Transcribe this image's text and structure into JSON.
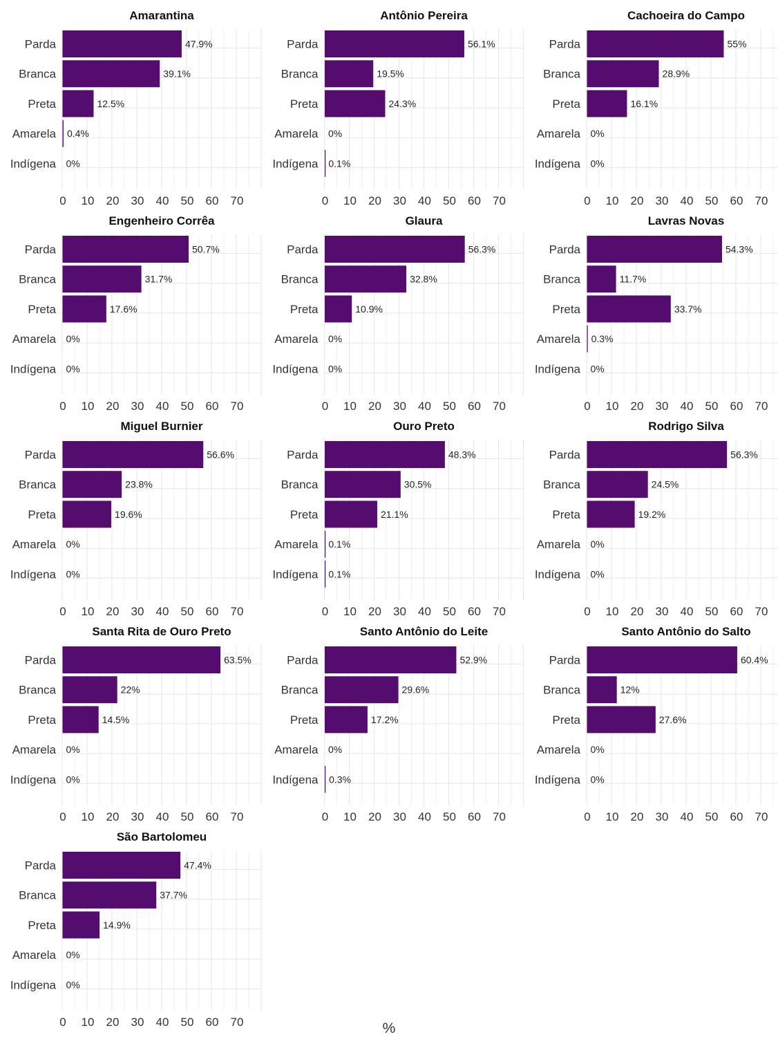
{
  "chart_data": {
    "type": "bar",
    "orientation": "horizontal",
    "xlabel": "%",
    "xlim": [
      0,
      80
    ],
    "xticks": [
      0,
      10,
      20,
      30,
      40,
      50,
      60,
      70
    ],
    "bar_color": "#540d6e",
    "grid": true,
    "categories": [
      "Parda",
      "Branca",
      "Preta",
      "Amarela",
      "Indígena"
    ],
    "panels": [
      {
        "title": "Amarantina",
        "values": [
          47.9,
          39.1,
          12.5,
          0.4,
          0
        ],
        "labels": [
          "47.9%",
          "39.1%",
          "12.5%",
          "0.4%",
          "0%"
        ]
      },
      {
        "title": "Antônio Pereira",
        "values": [
          56.1,
          19.5,
          24.3,
          0,
          0.1
        ],
        "labels": [
          "56.1%",
          "19.5%",
          "24.3%",
          "0%",
          "0.1%"
        ]
      },
      {
        "title": "Cachoeira do Campo",
        "values": [
          55,
          28.9,
          16.1,
          0,
          0
        ],
        "labels": [
          "55%",
          "28.9%",
          "16.1%",
          "0%",
          "0%"
        ]
      },
      {
        "title": "Engenheiro Corrêa",
        "values": [
          50.7,
          31.7,
          17.6,
          0,
          0
        ],
        "labels": [
          "50.7%",
          "31.7%",
          "17.6%",
          "0%",
          "0%"
        ]
      },
      {
        "title": "Glaura",
        "values": [
          56.3,
          32.8,
          10.9,
          0,
          0
        ],
        "labels": [
          "56.3%",
          "32.8%",
          "10.9%",
          "0%",
          "0%"
        ]
      },
      {
        "title": "Lavras Novas",
        "values": [
          54.3,
          11.7,
          33.7,
          0.3,
          0
        ],
        "labels": [
          "54.3%",
          "11.7%",
          "33.7%",
          "0.3%",
          "0%"
        ]
      },
      {
        "title": "Miguel Burnier",
        "values": [
          56.6,
          23.8,
          19.6,
          0,
          0
        ],
        "labels": [
          "56.6%",
          "23.8%",
          "19.6%",
          "0%",
          "0%"
        ]
      },
      {
        "title": "Ouro Preto",
        "values": [
          48.3,
          30.5,
          21.1,
          0.1,
          0.1
        ],
        "labels": [
          "48.3%",
          "30.5%",
          "21.1%",
          "0.1%",
          "0.1%"
        ]
      },
      {
        "title": "Rodrigo Silva",
        "values": [
          56.3,
          24.5,
          19.2,
          0,
          0
        ],
        "labels": [
          "56.3%",
          "24.5%",
          "19.2%",
          "0%",
          "0%"
        ]
      },
      {
        "title": "Santa Rita de Ouro Preto",
        "values": [
          63.5,
          22,
          14.5,
          0,
          0
        ],
        "labels": [
          "63.5%",
          "22%",
          "14.5%",
          "0%",
          "0%"
        ]
      },
      {
        "title": "Santo Antônio do Leite",
        "values": [
          52.9,
          29.6,
          17.2,
          0,
          0.3
        ],
        "labels": [
          "52.9%",
          "29.6%",
          "17.2%",
          "0%",
          "0.3%"
        ]
      },
      {
        "title": "Santo Antônio do Salto",
        "values": [
          60.4,
          12,
          27.6,
          0,
          0
        ],
        "labels": [
          "60.4%",
          "12%",
          "27.6%",
          "0%",
          "0%"
        ]
      },
      {
        "title": "São Bartolomeu",
        "values": [
          47.4,
          37.7,
          14.9,
          0,
          0
        ],
        "labels": [
          "47.4%",
          "37.7%",
          "14.9%",
          "0%",
          "0%"
        ]
      }
    ]
  }
}
